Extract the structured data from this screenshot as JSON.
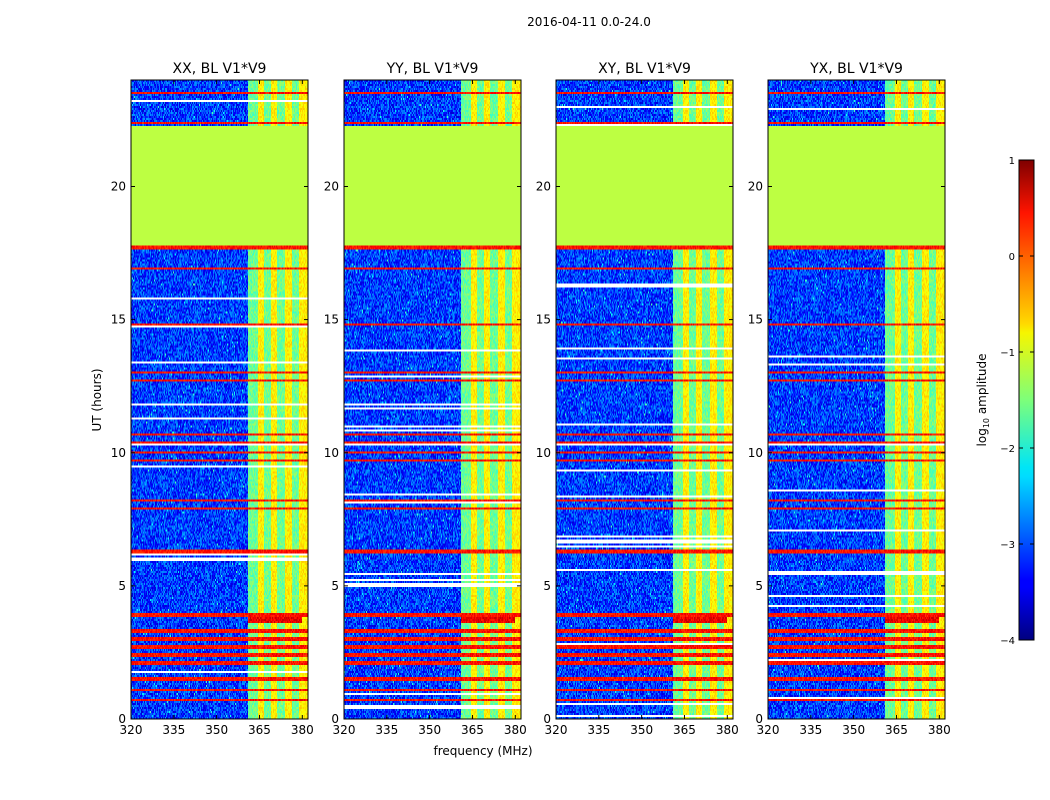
{
  "figure": {
    "suptitle": "2016-04-11 0.0-24.0",
    "xlabel": "frequency (MHz)",
    "ylabel": "UT (hours)",
    "colorbar_label": "log10 amplitude",
    "colorbar_label_base": "log",
    "colorbar_label_sub": "10",
    "colorbar_label_rest": " amplitude",
    "colorbar_ticks": [
      "1",
      "0",
      "−1",
      "−2",
      "−3",
      "−4"
    ]
  },
  "chart_data": {
    "type": "heatmap",
    "colormap": "jet",
    "colorbar_range": [
      -4,
      1
    ],
    "colorbar_tick_values": [
      1,
      0,
      -1,
      -2,
      -3,
      -4
    ],
    "x_range": [
      320,
      382
    ],
    "y_range": [
      0,
      24
    ],
    "x_ticks": [
      320,
      335,
      350,
      365,
      380
    ],
    "x_tick_labels": [
      "320",
      "335",
      "350",
      "365",
      "380"
    ],
    "y_ticks": [
      0,
      5,
      10,
      15,
      20
    ],
    "y_tick_labels": [
      "0",
      "5",
      "10",
      "15",
      "20"
    ],
    "panels": [
      {
        "title": "XX, BL V1*V9"
      },
      {
        "title": "YY, BL V1*V9"
      },
      {
        "title": "XY, BL V1*V9"
      },
      {
        "title": "YX, BL V1*V9"
      }
    ],
    "features": {
      "flagged_block_hours": [
        17.8,
        22.3
      ],
      "flagged_block_level": -1.2,
      "background_level": -3.1,
      "rfi_band_mhz": [
        361,
        380
      ],
      "rfi_subbands_mhz": [
        [
          364.5,
          366.5
        ],
        [
          369.0,
          371.0
        ],
        [
          374.0,
          376.5
        ],
        [
          379.0,
          382.0
        ]
      ],
      "strong_rfi_hours": [
        0.7,
        1.1,
        1.5,
        2.1,
        2.4,
        2.7,
        3.0,
        3.3,
        3.9,
        6.3,
        7.9,
        8.2,
        9.7,
        10.0,
        10.4,
        10.7,
        12.7,
        13.0,
        14.8,
        16.9,
        17.7,
        22.4,
        23.5
      ],
      "hot_patch_hours": [
        3.6,
        3.8
      ]
    }
  }
}
